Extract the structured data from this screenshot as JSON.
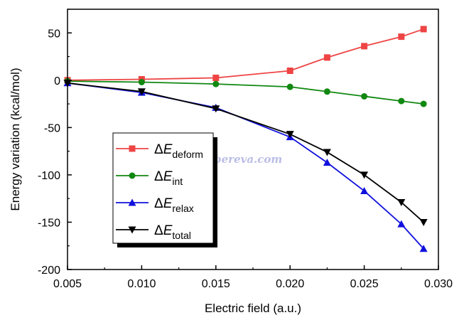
{
  "chart_data": {
    "type": "line",
    "title": "",
    "xlabel": "Electric field (a.u.)",
    "ylabel": "Energy variation (kcal/mol)",
    "xlim": [
      0.005,
      0.03
    ],
    "ylim": [
      -200,
      75
    ],
    "xticks": [
      "0.005",
      "0.010",
      "0.015",
      "0.020",
      "0.025",
      "0.030"
    ],
    "yticks": [
      "50",
      "0",
      "-50",
      "-100",
      "-150",
      "-200"
    ],
    "x": [
      0.005,
      0.01,
      0.015,
      0.02,
      0.0225,
      0.025,
      0.0275,
      0.029
    ],
    "series": [
      {
        "name": "ΔE",
        "subscript": "deform",
        "color": "#ee4444",
        "marker": "square",
        "values": [
          0,
          1,
          2.5,
          10,
          24,
          36,
          46,
          54
        ]
      },
      {
        "name": "ΔE",
        "subscript": "int",
        "color": "#118811",
        "marker": "circle",
        "values": [
          -1,
          -2,
          -4,
          -7,
          -12,
          -17,
          -22,
          -25
        ]
      },
      {
        "name": "ΔE",
        "subscript": "relax",
        "color": "#1010dd",
        "marker": "triangle-up",
        "values": [
          -3,
          -13,
          -29,
          -60,
          -87,
          -117,
          -152,
          -178
        ]
      },
      {
        "name": "ΔE",
        "subscript": "total",
        "color": "#000000",
        "marker": "triangle-down",
        "values": [
          -3,
          -12,
          -30,
          -57,
          -76,
          -100,
          -129,
          -150
        ]
      }
    ],
    "legend_position": "lower-left",
    "grid": false,
    "watermark": "sobereva.com"
  }
}
